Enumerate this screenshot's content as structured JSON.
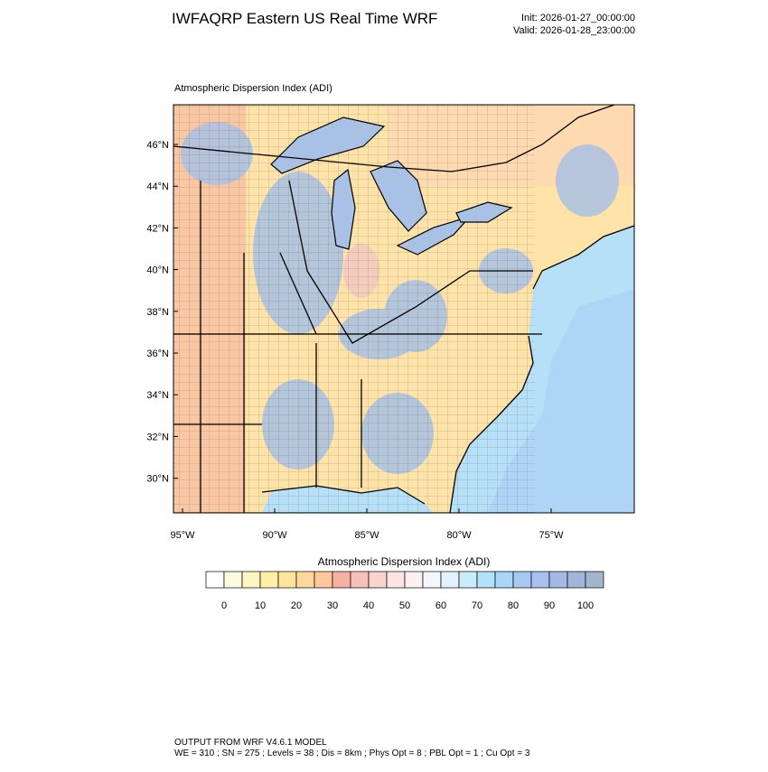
{
  "header": {
    "title": "IWFAQRP Eastern US Real Time WRF",
    "init": "Init: 2026-01-27_00:00:00",
    "valid": "Valid: 2026-01-28_23:00:00"
  },
  "map": {
    "title": "Atmospheric Dispersion Index   (ADI)",
    "lat_labels": [
      "46°N",
      "44°N",
      "42°N",
      "40°N",
      "38°N",
      "36°N",
      "34°N",
      "32°N",
      "30°N"
    ],
    "lon_labels": [
      "95°W",
      "90°W",
      "85°W",
      "80°W",
      "75°W"
    ]
  },
  "colorbar": {
    "title": "Atmospheric Dispersion Index  (ADI)",
    "colors": [
      "#ffffff",
      "#fffbe0",
      "#fff5c0",
      "#ffefa8",
      "#ffe49a",
      "#ffd79a",
      "#ffc79a",
      "#f7b1a3",
      "#f8c0bb",
      "#fad3cf",
      "#fde4e2",
      "#fdf0f0",
      "#f5f5ff",
      "#e3f1fc",
      "#c9ecfb",
      "#b0e2f9",
      "#a7d6f6",
      "#a6c9f2",
      "#a7c0ee",
      "#a5b9e6",
      "#a2b6dc",
      "#a3b4cc"
    ],
    "ticks": [
      0,
      10,
      20,
      30,
      40,
      50,
      60,
      70,
      80,
      90,
      100
    ]
  },
  "footer": {
    "line1": "OUTPUT FROM WRF V4.6.1 MODEL",
    "line2": "WE = 310 ; SN = 275 ; Levels = 38 ; Dis = 8km ; Phys Opt = 8 ; PBL Opt = 1 ; Cu Opt = 3"
  }
}
